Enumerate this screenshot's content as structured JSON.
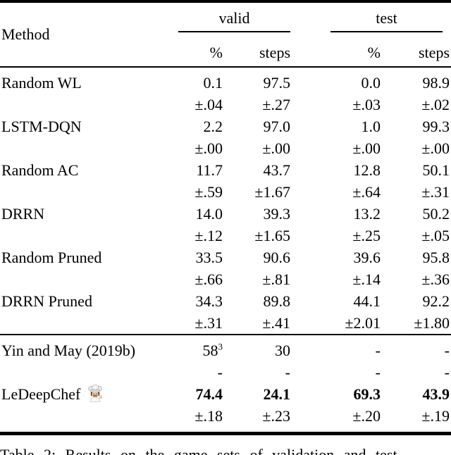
{
  "page": {
    "background": "#ffffff",
    "text_color": "#000000",
    "rule_color": "#000000"
  },
  "table": {
    "method_header": "Method",
    "groups": [
      {
        "label": "valid"
      },
      {
        "label": "test"
      }
    ],
    "sub_headers": [
      "%",
      "steps",
      "%",
      "steps"
    ],
    "rows": [
      {
        "method": "Random WL",
        "values": [
          "0.1",
          "97.5",
          "0.0",
          "98.9"
        ],
        "errors": [
          "±.04",
          "±.27",
          "±.03",
          "±.02"
        ],
        "bold": false,
        "separator_above": false
      },
      {
        "method": "LSTM-DQN",
        "values": [
          "2.2",
          "97.0",
          "1.0",
          "99.3"
        ],
        "errors": [
          "±.00",
          "±.00",
          "±.00",
          "±.00"
        ],
        "bold": false,
        "separator_above": false
      },
      {
        "method": "Random AC",
        "values": [
          "11.7",
          "43.7",
          "12.8",
          "50.1"
        ],
        "errors": [
          "±.59",
          "±1.67",
          "±.64",
          "±.31"
        ],
        "bold": false,
        "separator_above": false
      },
      {
        "method": "DRRN",
        "values": [
          "14.0",
          "39.3",
          "13.2",
          "50.2"
        ],
        "errors": [
          "±.12",
          "±1.65",
          "±.25",
          "±.05"
        ],
        "bold": false,
        "separator_above": false
      },
      {
        "method": "Random Pruned",
        "values": [
          "33.5",
          "90.6",
          "39.6",
          "95.8"
        ],
        "errors": [
          "±.66",
          "±.81",
          "±.14",
          "±.36"
        ],
        "bold": false,
        "separator_above": false
      },
      {
        "method": "DRRN Pruned",
        "values": [
          "34.3",
          "89.8",
          "44.1",
          "92.2"
        ],
        "errors": [
          "±.31",
          "±.41",
          "±2.01",
          "±1.80"
        ],
        "bold": false,
        "separator_above": false
      },
      {
        "method": "Yin and May (2019b)",
        "values": [
          "58^3",
          "30",
          "-",
          "-"
        ],
        "errors": [
          "-",
          "-",
          "-",
          "-"
        ],
        "bold": false,
        "separator_above": true
      },
      {
        "method": "LeDeepChef",
        "icon": "chef-emoji",
        "values": [
          "74.4",
          "24.1",
          "69.3",
          "43.9"
        ],
        "errors": [
          "±.18",
          "±.23",
          "±.20",
          "±.19"
        ],
        "bold": true,
        "separator_above": false
      }
    ],
    "caption": "Table 2: Results on the game sets of validation and test"
  }
}
